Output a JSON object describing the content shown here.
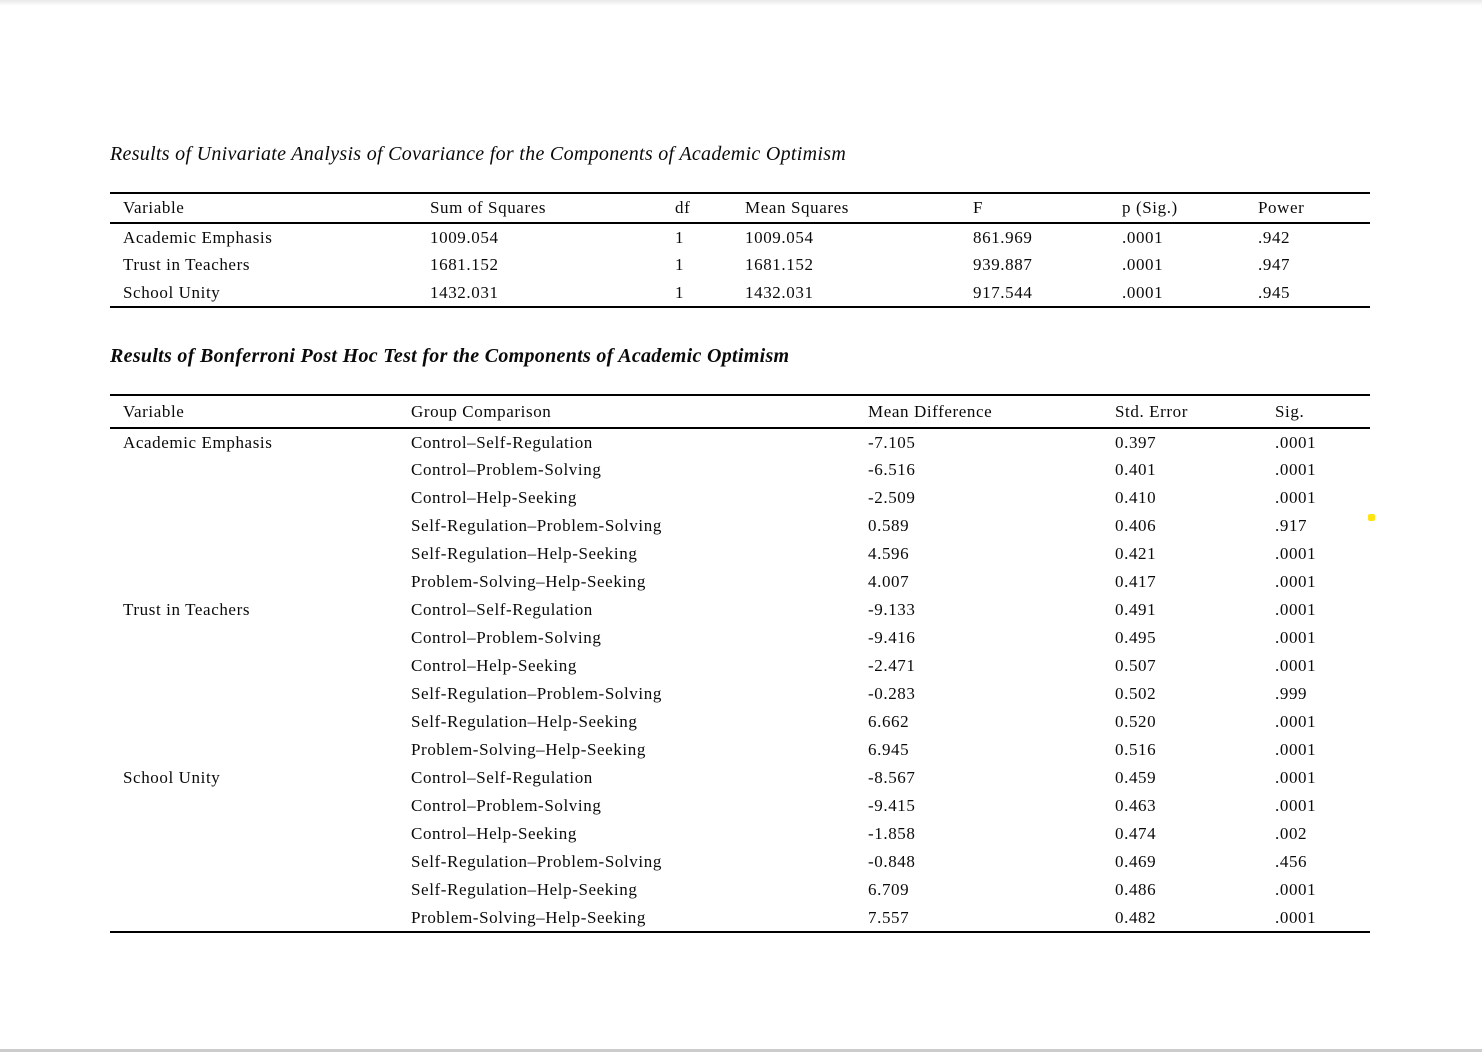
{
  "section1": {
    "title": "Results of Univariate Analysis of Covariance for the Components of Academic Optimism"
  },
  "ancova_table": {
    "headers": [
      "Variable",
      "Sum of Squares",
      "df",
      "Mean Squares",
      "F",
      "p (Sig.)",
      "Power"
    ],
    "rows": [
      {
        "variable": "Academic Emphasis",
        "sum_of_squares": "1009.054",
        "df": "1",
        "mean_squares": "1009.054",
        "f": "861.969",
        "p_sig": ".0001",
        "power": ".942"
      },
      {
        "variable": "Trust in Teachers",
        "sum_of_squares": "1681.152",
        "df": "1",
        "mean_squares": "1681.152",
        "f": "939.887",
        "p_sig": ".0001",
        "power": ".947"
      },
      {
        "variable": "School Unity",
        "sum_of_squares": "1432.031",
        "df": "1",
        "mean_squares": "1432.031",
        "f": "917.544",
        "p_sig": ".0001",
        "power": ".945"
      }
    ]
  },
  "section2": {
    "title": "Results of Bonferroni Post Hoc Test for the Components of Academic Optimism"
  },
  "post_hoc_table": {
    "headers": [
      "Variable",
      "Group Comparison",
      "Mean Difference",
      "Std. Error",
      "Sig."
    ],
    "rows": [
      {
        "variable": "Academic Emphasis",
        "comparison": "Control–Self-Regulation",
        "mean_difference": "-7.105",
        "std_error": "0.397",
        "sig": ".0001"
      },
      {
        "variable": "",
        "comparison": "Control–Problem-Solving",
        "mean_difference": "-6.516",
        "std_error": "0.401",
        "sig": ".0001"
      },
      {
        "variable": "",
        "comparison": "Control–Help-Seeking",
        "mean_difference": "-2.509",
        "std_error": "0.410",
        "sig": ".0001"
      },
      {
        "variable": "",
        "comparison": "Self-Regulation–Problem-Solving",
        "mean_difference": "0.589",
        "std_error": "0.406",
        "sig": ".917"
      },
      {
        "variable": "",
        "comparison": "Self-Regulation–Help-Seeking",
        "mean_difference": "4.596",
        "std_error": "0.421",
        "sig": ".0001"
      },
      {
        "variable": "",
        "comparison": "Problem-Solving–Help-Seeking",
        "mean_difference": "4.007",
        "std_error": "0.417",
        "sig": ".0001"
      },
      {
        "variable": "Trust in Teachers",
        "comparison": "Control–Self-Regulation",
        "mean_difference": "-9.133",
        "std_error": "0.491",
        "sig": ".0001"
      },
      {
        "variable": "",
        "comparison": "Control–Problem-Solving",
        "mean_difference": "-9.416",
        "std_error": "0.495",
        "sig": ".0001"
      },
      {
        "variable": "",
        "comparison": "Control–Help-Seeking",
        "mean_difference": "-2.471",
        "std_error": "0.507",
        "sig": ".0001"
      },
      {
        "variable": "",
        "comparison": "Self-Regulation–Problem-Solving",
        "mean_difference": "-0.283",
        "std_error": "0.502",
        "sig": ".999"
      },
      {
        "variable": "",
        "comparison": "Self-Regulation–Help-Seeking",
        "mean_difference": "6.662",
        "std_error": "0.520",
        "sig": ".0001"
      },
      {
        "variable": "",
        "comparison": "Problem-Solving–Help-Seeking",
        "mean_difference": "6.945",
        "std_error": "0.516",
        "sig": ".0001"
      },
      {
        "variable": "School Unity",
        "comparison": "Control–Self-Regulation",
        "mean_difference": "-8.567",
        "std_error": "0.459",
        "sig": ".0001"
      },
      {
        "variable": "",
        "comparison": "Control–Problem-Solving",
        "mean_difference": "-9.415",
        "std_error": "0.463",
        "sig": ".0001"
      },
      {
        "variable": "",
        "comparison": "Control–Help-Seeking",
        "mean_difference": "-1.858",
        "std_error": "0.474",
        "sig": ".002"
      },
      {
        "variable": "",
        "comparison": "Self-Regulation–Problem-Solving",
        "mean_difference": "-0.848",
        "std_error": "0.469",
        "sig": ".456"
      },
      {
        "variable": "",
        "comparison": "Self-Regulation–Help-Seeking",
        "mean_difference": "6.709",
        "std_error": "0.486",
        "sig": ".0001"
      },
      {
        "variable": "",
        "comparison": "Problem-Solving–Help-Seeking",
        "mean_difference": "7.557",
        "std_error": "0.482",
        "sig": ".0001"
      }
    ]
  },
  "annotations": {
    "highlight_dot_color": "#ffe312"
  }
}
